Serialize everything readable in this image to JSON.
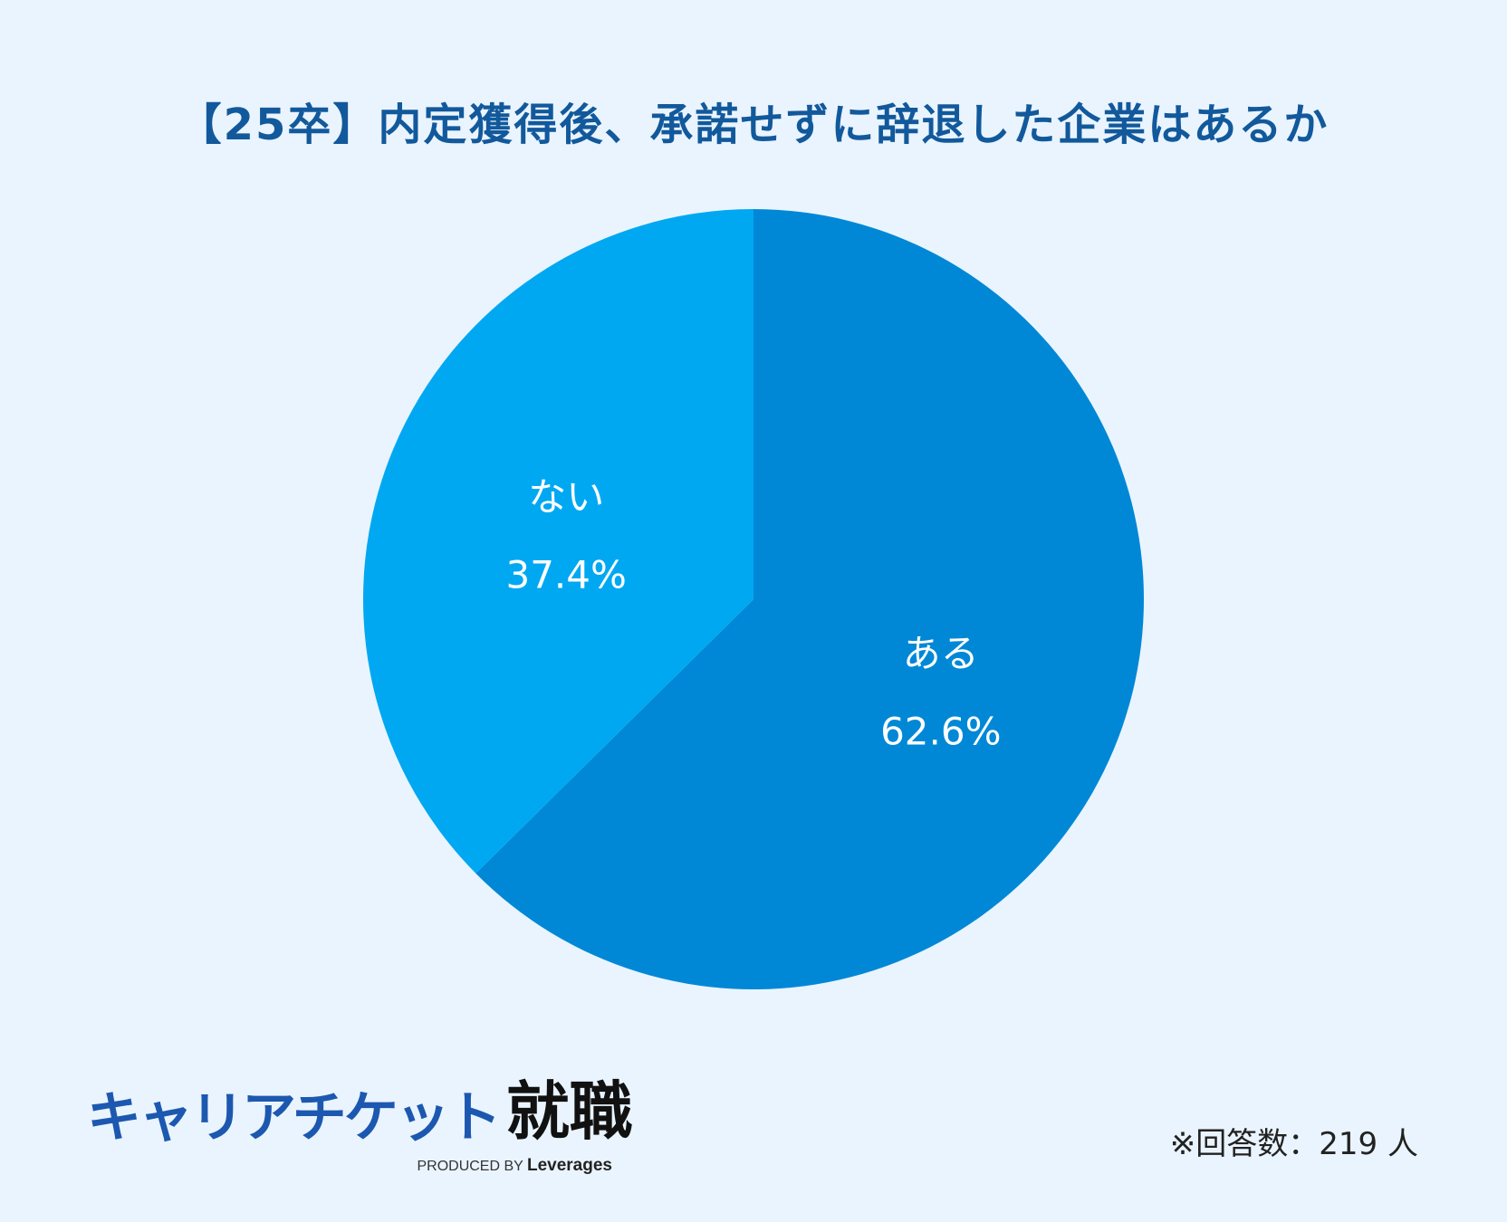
{
  "chart_data": {
    "type": "pie",
    "title": "【25卒】内定獲得後、承諾せずに辞退した企業はあるか",
    "slices": [
      {
        "label": "ある",
        "value": 62.6,
        "value_label": "62.6%",
        "color": "#0088d6"
      },
      {
        "label": "ない",
        "value": 37.4,
        "value_label": "37.4%",
        "color": "#00a8f2"
      }
    ],
    "start": "12 o'clock, clockwise",
    "legend": "none (labels inside slices)"
  },
  "logo": {
    "kana": "キャリアチケット",
    "kanji": "就職",
    "produced_by": "PRODUCED BY",
    "brand": "Leverages"
  },
  "note": "※回答数：219 人",
  "colors": {
    "background": "#eaf4fe",
    "title": "#12599c",
    "logo_blue": "#1c58b0"
  }
}
